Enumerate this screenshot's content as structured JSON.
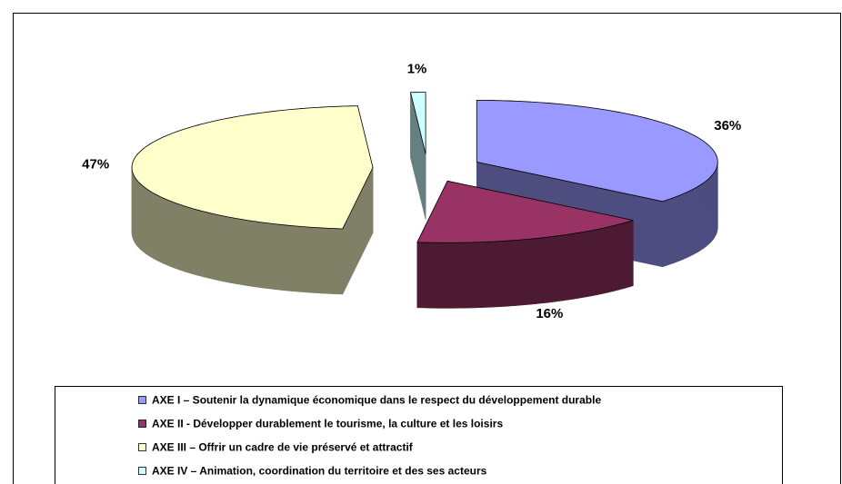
{
  "chart_data": {
    "type": "pie3d",
    "categories": [
      "AXE I – Soutenir la dynamique économique dans le respect du développement durable",
      "AXE II - Développer durablement le tourisme, la culture et les loisirs",
      "AXE III – Offrir un cadre de vie préservé et attractif",
      "AXE IV – Animation, coordination du territoire et des ses acteurs"
    ],
    "values": [
      36,
      16,
      47,
      1
    ],
    "value_labels": [
      "36%",
      "16%",
      "47%",
      "1%"
    ],
    "colors": [
      "#9999ff",
      "#993366",
      "#ffffcc",
      "#ccffff"
    ],
    "legend": "bottom"
  }
}
